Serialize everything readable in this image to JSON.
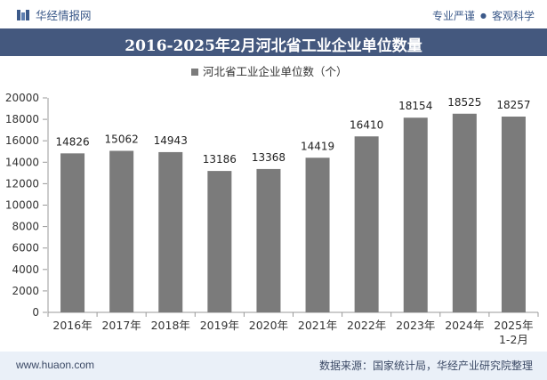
{
  "header": {
    "brand": "华经情报网",
    "tagline_left": "专业严谨",
    "tagline_sep": "●",
    "tagline_right": "客观科学"
  },
  "title": "2016-2025年2月河北省工业企业单位数量",
  "footer": {
    "site": "www.huaon.com",
    "source": "数据来源：国家统计局，华经产业研究院整理"
  },
  "colors": {
    "bar": "#7b7b7b",
    "title_bg": "#44587e",
    "footer_bg": "#eaf0f8",
    "brand": "#3c5a8a"
  },
  "chart_data": {
    "type": "bar",
    "categories": [
      [
        "2016年"
      ],
      [
        "2017年"
      ],
      [
        "2018年"
      ],
      [
        "2019年"
      ],
      [
        "2020年"
      ],
      [
        "2021年"
      ],
      [
        "2022年"
      ],
      [
        "2023年"
      ],
      [
        "2024年"
      ],
      [
        "2025年",
        "1-2月"
      ]
    ],
    "series": [
      {
        "name": "河北省工业企业单位数（个）",
        "values": [
          14826,
          15062,
          14943,
          13186,
          13368,
          14419,
          16410,
          18154,
          18525,
          18257
        ]
      }
    ],
    "ylim": [
      0,
      20000
    ],
    "yticks": [
      0,
      2000,
      4000,
      6000,
      8000,
      10000,
      12000,
      14000,
      16000,
      18000,
      20000
    ],
    "legend_position": "top-center",
    "grid": false
  }
}
